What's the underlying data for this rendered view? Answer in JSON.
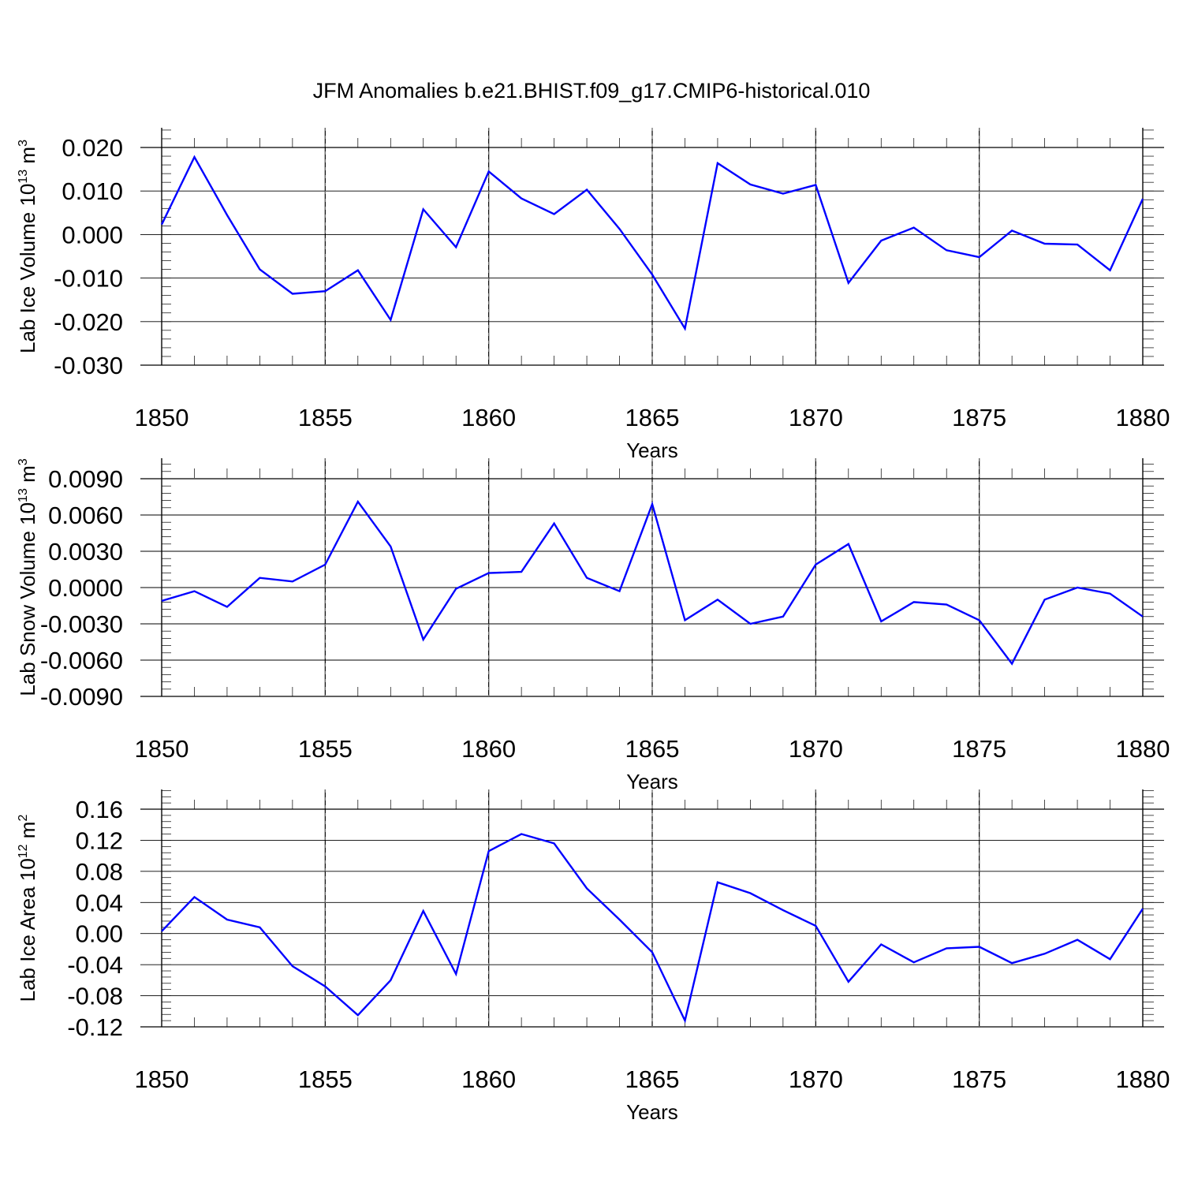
{
  "title": "JFM Anomalies b.e21.BHIST.f09_g17.CMIP6-historical.010",
  "colors": {
    "series": "#0000ff",
    "axis": "#000000",
    "grid": "#777777"
  },
  "chart_data": [
    {
      "type": "line",
      "ylabel_main": "Lab Ice Volume 10",
      "ylabel_exp": "13",
      "ylabel_unit": " m",
      "ylabel_unit_exp": "3",
      "xlabel": "Years",
      "xlim": [
        1850,
        1880
      ],
      "ylim": [
        -0.03,
        0.025
      ],
      "x_ticks": [
        1850,
        1855,
        1860,
        1865,
        1870,
        1875,
        1880
      ],
      "y_ticks": [
        -0.03,
        -0.02,
        -0.01,
        0.0,
        0.01,
        0.02
      ],
      "y_tick_labels": [
        "-0.030",
        "-0.020",
        "-0.010",
        "0.000",
        "0.010",
        "0.020"
      ],
      "y_minor_step": 0.002,
      "grid": "vertical dashed",
      "x": [
        1850,
        1851,
        1852,
        1853,
        1854,
        1855,
        1856,
        1857,
        1858,
        1859,
        1860,
        1861,
        1862,
        1863,
        1864,
        1865,
        1866,
        1867,
        1868,
        1869,
        1870,
        1871,
        1872,
        1873,
        1874,
        1875,
        1876,
        1877,
        1878,
        1879,
        1880
      ],
      "values": [
        0.0023,
        0.0178,
        0.0045,
        -0.008,
        -0.0136,
        -0.013,
        -0.0082,
        -0.0196,
        0.0058,
        -0.0029,
        0.0145,
        0.0083,
        0.0047,
        0.0103,
        0.0013,
        -0.0092,
        -0.0216,
        0.0164,
        0.0115,
        0.0094,
        0.0114,
        -0.0111,
        -0.0014,
        0.0016,
        -0.0036,
        -0.0052,
        0.0009,
        -0.0021,
        -0.0023,
        -0.0082,
        0.0082
      ]
    },
    {
      "type": "line",
      "ylabel_main": "Lab Snow Volume 10",
      "ylabel_exp": "13",
      "ylabel_unit": " m",
      "ylabel_unit_exp": "3",
      "xlabel": "Years",
      "xlim": [
        1850,
        1880
      ],
      "ylim": [
        -0.009,
        0.0105
      ],
      "x_ticks": [
        1850,
        1855,
        1860,
        1865,
        1870,
        1875,
        1880
      ],
      "y_ticks": [
        -0.009,
        -0.006,
        -0.003,
        0.0,
        0.003,
        0.006,
        0.009
      ],
      "y_tick_labels": [
        "-0.0090",
        "-0.0060",
        "-0.0030",
        "0.0000",
        "0.0030",
        "0.0060",
        "0.0090"
      ],
      "y_minor_step": 0.0006,
      "grid": "vertical dashed",
      "x": [
        1850,
        1851,
        1852,
        1853,
        1854,
        1855,
        1856,
        1857,
        1858,
        1859,
        1860,
        1861,
        1862,
        1863,
        1864,
        1865,
        1866,
        1867,
        1868,
        1869,
        1870,
        1871,
        1872,
        1873,
        1874,
        1875,
        1876,
        1877,
        1878,
        1879,
        1880
      ],
      "values": [
        -0.0011,
        -0.0003,
        -0.0016,
        0.0008,
        0.0005,
        0.0019,
        0.0071,
        0.0034,
        -0.0043,
        -0.0001,
        0.0012,
        0.0013,
        0.0053,
        0.0008,
        -0.0003,
        0.0069,
        -0.0027,
        -0.001,
        -0.003,
        -0.0024,
        0.0019,
        0.0036,
        -0.0028,
        -0.0012,
        -0.0014,
        -0.0027,
        -0.0063,
        -0.001,
        0.0,
        -0.0005,
        -0.0024
      ]
    },
    {
      "type": "line",
      "ylabel_main": "Lab Ice Area 10",
      "ylabel_exp": "12",
      "ylabel_unit": " m",
      "ylabel_unit_exp": "2",
      "xlabel": "Years",
      "xlim": [
        1850,
        1880
      ],
      "ylim": [
        -0.12,
        0.185
      ],
      "x_ticks": [
        1850,
        1855,
        1860,
        1865,
        1870,
        1875,
        1880
      ],
      "y_ticks": [
        -0.12,
        -0.08,
        -0.04,
        0.0,
        0.04,
        0.08,
        0.12,
        0.16
      ],
      "y_tick_labels": [
        "-0.12",
        "-0.08",
        "-0.04",
        "0.00",
        "0.04",
        "0.08",
        "0.12",
        "0.16"
      ],
      "y_minor_step": 0.008,
      "grid": "vertical dashed",
      "x": [
        1850,
        1851,
        1852,
        1853,
        1854,
        1855,
        1856,
        1857,
        1858,
        1859,
        1860,
        1861,
        1862,
        1863,
        1864,
        1865,
        1866,
        1867,
        1868,
        1869,
        1870,
        1871,
        1872,
        1873,
        1874,
        1875,
        1876,
        1877,
        1878,
        1879,
        1880
      ],
      "values": [
        0.003,
        0.047,
        0.018,
        0.008,
        -0.042,
        -0.068,
        -0.105,
        -0.06,
        0.029,
        -0.052,
        0.106,
        0.128,
        0.116,
        0.058,
        0.018,
        -0.024,
        -0.112,
        0.066,
        0.052,
        0.03,
        0.01,
        -0.062,
        -0.014,
        -0.037,
        -0.019,
        -0.017,
        -0.038,
        -0.026,
        -0.008,
        -0.033,
        0.032
      ]
    }
  ]
}
